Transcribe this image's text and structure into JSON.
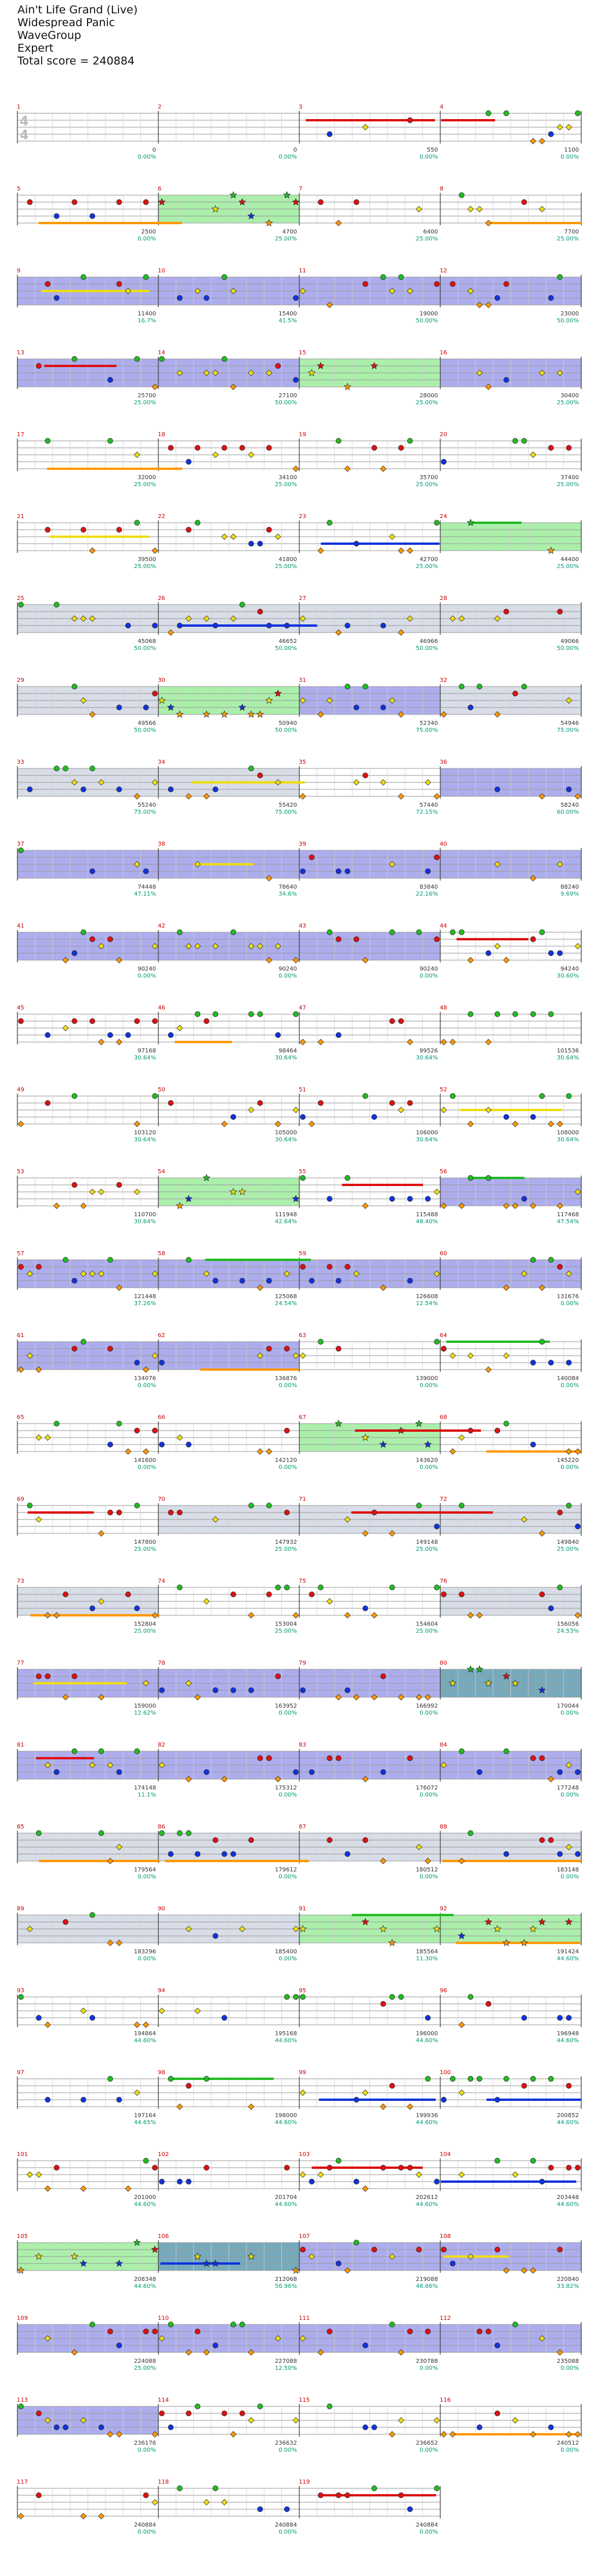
{
  "header": {
    "song_title": "Ain't Life Grand (Live)",
    "artist": "Widespread Panic",
    "charter": "WaveGroup",
    "difficulty": "Expert",
    "total_score_text": "Total score = 240884"
  },
  "chart_data": {
    "type": "note-highway",
    "title": "Ain't Life Grand (Live)",
    "time_signature": "4/4",
    "lane_colors": [
      "#22bb22",
      "#dd1111",
      "#eedd11",
      "#1133dd",
      "#ff9900"
    ],
    "rows": [
      {
        "measures": [
          1,
          2,
          3,
          4
        ],
        "scores": [
          0,
          0,
          550,
          1100
        ],
        "multipliers": [
          "0.00%",
          "0.00%",
          "0.00%",
          "0.00%"
        ]
      },
      {
        "measures": [
          5,
          6,
          7,
          8
        ],
        "scores": [
          2500,
          4700,
          6400,
          7700
        ],
        "multipliers": [
          "0.00%",
          "25.00%",
          "25.00%",
          "25.00%"
        ]
      },
      {
        "measures": [
          9,
          10,
          11,
          12
        ],
        "scores": [
          11400,
          15400,
          19000,
          23000
        ],
        "multipliers": [
          "16.7%",
          "41.5%",
          "50.00%",
          "50.00%"
        ]
      },
      {
        "measures": [
          13,
          14,
          15,
          16
        ],
        "scores": [
          25700,
          27100,
          28000,
          30400
        ],
        "multipliers": [
          "25.00%",
          "50.00%",
          "25.00%",
          "25.00%"
        ]
      },
      {
        "measures": [
          17,
          18,
          19,
          20
        ],
        "scores": [
          32000,
          34100,
          35700,
          37400
        ],
        "multipliers": [
          "25.00%",
          "25.00%",
          "25.00%",
          "25.00%"
        ]
      },
      {
        "measures": [
          21,
          22,
          23,
          24
        ],
        "scores": [
          39500,
          41800,
          42700,
          44400
        ],
        "multipliers": [
          "25.00%",
          "25.00%",
          "25.00%",
          "25.00%"
        ]
      },
      {
        "measures": [
          25,
          26,
          27,
          28
        ],
        "scores": [
          45068,
          46652,
          46966,
          49066
        ],
        "multipliers": [
          "50.00%",
          "50.00%",
          "50.00%",
          "50.00%"
        ]
      },
      {
        "measures": [
          29,
          30,
          31,
          32
        ],
        "scores": [
          49566,
          50940,
          52340,
          54946
        ],
        "multipliers": [
          "50.00%",
          "50.00%",
          "75.00%",
          "75.00%"
        ]
      },
      {
        "measures": [
          33,
          34,
          35,
          36
        ],
        "scores": [
          55240,
          55420,
          57440,
          58240
        ],
        "multipliers": [
          "75.00%",
          "75.00%",
          "72.15%",
          "60.00%"
        ]
      },
      {
        "measures": [
          37,
          38,
          39,
          40
        ],
        "scores": [
          74448,
          78640,
          83840,
          88240
        ],
        "multipliers": [
          "47.11%",
          "34.6%",
          "22.16%",
          "9.69%"
        ]
      },
      {
        "measures": [
          41,
          42,
          43,
          44
        ],
        "scores": [
          90240,
          90240,
          90240,
          94240
        ],
        "multipliers": [
          "0.00%",
          "0.00%",
          "0.00%",
          "30.60%"
        ]
      },
      {
        "measures": [
          45,
          46,
          47,
          48
        ],
        "scores": [
          97168,
          98464,
          99526,
          101536
        ],
        "multipliers": [
          "30.64%",
          "30.64%",
          "30.64%",
          "30.64%"
        ]
      },
      {
        "measures": [
          49,
          50,
          51,
          52
        ],
        "scores": [
          103120,
          105000,
          106000,
          108000
        ],
        "multipliers": [
          "30.64%",
          "30.64%",
          "30.64%",
          "30.64%"
        ]
      },
      {
        "measures": [
          53,
          54,
          55,
          56
        ],
        "scores": [
          110700,
          111948,
          115488,
          117468
        ],
        "multipliers": [
          "30.64%",
          "42.64%",
          "48.40%",
          "47.54%"
        ]
      },
      {
        "measures": [
          57,
          58,
          59,
          60
        ],
        "scores": [
          121448,
          125068,
          126608,
          131676
        ],
        "multipliers": [
          "37.26%",
          "24.54%",
          "12.54%",
          "0.00%"
        ]
      },
      {
        "measures": [
          61,
          62,
          63,
          64
        ],
        "scores": [
          134076,
          136876,
          139000,
          140084
        ],
        "multipliers": [
          "0.00%",
          "0.00%",
          "0.00%",
          "0.00%"
        ]
      },
      {
        "measures": [
          65,
          66,
          67,
          68
        ],
        "scores": [
          141600,
          142120,
          143620,
          145220
        ],
        "multipliers": [
          "0.00%",
          "0.00%",
          "0.00%",
          "0.00%"
        ]
      },
      {
        "measures": [
          69,
          70,
          71,
          72
        ],
        "scores": [
          147800,
          147932,
          149148,
          149840
        ],
        "multipliers": [
          "25.00%",
          "25.00%",
          "25.00%",
          "25.00%"
        ]
      },
      {
        "measures": [
          73,
          74,
          75,
          76
        ],
        "scores": [
          152804,
          153004,
          154604,
          156056
        ],
        "multipliers": [
          "25.00%",
          "25.00%",
          "25.00%",
          "24.53%"
        ]
      },
      {
        "measures": [
          77,
          78,
          79,
          80
        ],
        "scores": [
          159000,
          163952,
          166992,
          170044
        ],
        "multipliers": [
          "12.62%",
          "0.00%",
          "0.00%",
          "0.00%"
        ]
      },
      {
        "measures": [
          81,
          82,
          83,
          84
        ],
        "scores": [
          174148,
          175312,
          176072,
          177248
        ],
        "multipliers": [
          "11.1%",
          "0.00%",
          "0.00%",
          "0.00%"
        ]
      },
      {
        "measures": [
          85,
          86,
          87,
          88
        ],
        "scores": [
          179564,
          179612,
          180512,
          183148
        ],
        "multipliers": [
          "0.00%",
          "0.00%",
          "0.00%",
          "0.00%"
        ]
      },
      {
        "measures": [
          89,
          90,
          91,
          92
        ],
        "scores": [
          183296,
          185400,
          185564,
          191424
        ],
        "multipliers": [
          "0.00%",
          "0.00%",
          "11.30%",
          "44.60%"
        ]
      },
      {
        "measures": [
          93,
          94,
          95,
          96
        ],
        "scores": [
          194864,
          195168,
          196000,
          196948
        ],
        "multipliers": [
          "44.60%",
          "44.60%",
          "44.60%",
          "44.60%"
        ]
      },
      {
        "measures": [
          97,
          98,
          99,
          100
        ],
        "scores": [
          197164,
          198000,
          199936,
          200852
        ],
        "multipliers": [
          "44.65%",
          "44.60%",
          "44.60%",
          "44.60%"
        ]
      },
      {
        "measures": [
          101,
          102,
          103,
          104
        ],
        "scores": [
          201000,
          201704,
          202612,
          203448
        ],
        "multipliers": [
          "44.60%",
          "44.60%",
          "44.60%",
          "44.60%"
        ]
      },
      {
        "measures": [
          105,
          106,
          107,
          108
        ],
        "scores": [
          208348,
          212068,
          219088,
          220840
        ],
        "multipliers": [
          "44.60%",
          "56.96%",
          "46.66%",
          "33.82%"
        ]
      },
      {
        "measures": [
          109,
          110,
          111,
          112
        ],
        "scores": [
          224088,
          227088,
          230788,
          235088
        ],
        "multipliers": [
          "25.00%",
          "12.50%",
          "0.00%",
          "0.00%"
        ]
      },
      {
        "measures": [
          113,
          114,
          115,
          116
        ],
        "scores": [
          236176,
          236632,
          236652,
          240512
        ],
        "multipliers": [
          "0.00%",
          "0.00%",
          "0.00%",
          "0.00%"
        ]
      },
      {
        "measures": [
          117,
          118,
          119
        ],
        "scores": [
          240884,
          240884,
          240884
        ],
        "multipliers": [
          "0.00%",
          "0.00%",
          "0.00%"
        ]
      }
    ]
  }
}
